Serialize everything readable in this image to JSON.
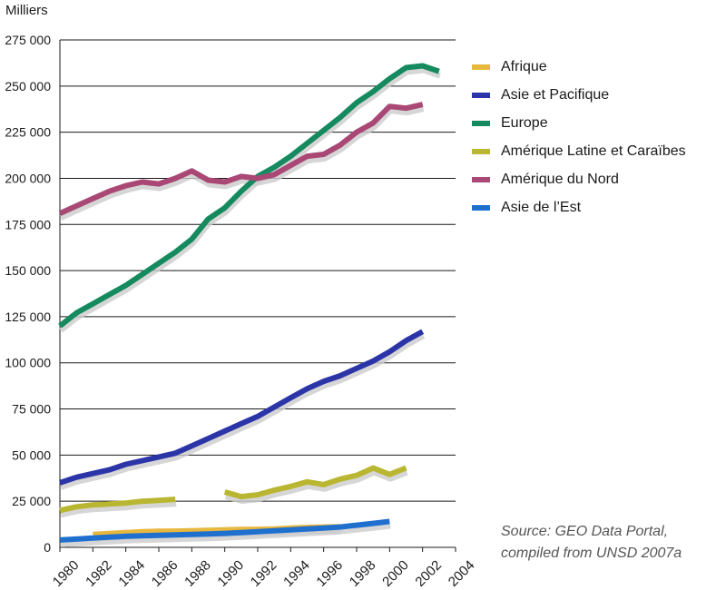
{
  "chart_data": {
    "type": "line",
    "ylabel": "Milliers",
    "xlabel": "",
    "xlim": [
      1980,
      2004
    ],
    "ylim": [
      0,
      275000
    ],
    "x_ticks": [
      "1980",
      "1982",
      "1984",
      "1986",
      "1988",
      "1990",
      "1992",
      "1994",
      "1996",
      "1998",
      "2000",
      "2002",
      "2004"
    ],
    "y_ticks": [
      "0",
      "25 000",
      "50 000",
      "75 000",
      "100 000",
      "125 000",
      "150 000",
      "175 000",
      "200 000",
      "225 000",
      "250 000",
      "275 000"
    ],
    "grid": "horizontal",
    "legend_position": "right",
    "series": [
      {
        "name": "Afrique",
        "color": "#E8B83E",
        "segments": [
          {
            "x": [
              1982,
              1983,
              1984,
              1985,
              1986,
              1987,
              1988,
              1989,
              1990,
              1991,
              1992,
              1993,
              1994,
              1995,
              1996,
              1997
            ],
            "y": [
              7000,
              7500,
              8000,
              8500,
              8700,
              8800,
              9000,
              9200,
              9500,
              9700,
              9800,
              10000,
              10500,
              10800,
              11000,
              11200
            ]
          }
        ]
      },
      {
        "name": "Asie et Pacifique",
        "color": "#2B35A8",
        "segments": [
          {
            "x": [
              1980,
              1981,
              1982,
              1983,
              1984,
              1985,
              1986,
              1987,
              1988,
              1989,
              1990,
              1991,
              1992,
              1993,
              1994,
              1995,
              1996,
              1997,
              1998,
              1999,
              2000,
              2001,
              2002
            ],
            "y": [
              35000,
              38000,
              40000,
              42000,
              45000,
              47000,
              49000,
              51000,
              55000,
              59000,
              63000,
              67000,
              71000,
              76000,
              81000,
              86000,
              90000,
              93000,
              97000,
              101000,
              106000,
              112000,
              117000
            ]
          }
        ]
      },
      {
        "name": "Europe",
        "color": "#158A5E",
        "segments": [
          {
            "x": [
              1980,
              1981,
              1982,
              1983,
              1984,
              1985,
              1986,
              1987,
              1988,
              1989,
              1990,
              1991,
              1992,
              1993,
              1994,
              1995,
              1996,
              1997,
              1998,
              1999,
              2000,
              2001,
              2002,
              2003
            ],
            "y": [
              120000,
              127000,
              132000,
              137000,
              142000,
              148000,
              154000,
              160000,
              167000,
              178000,
              184000,
              193000,
              201000,
              206000,
              212000,
              219000,
              226000,
              233000,
              241000,
              247000,
              254000,
              260000,
              261000,
              258000
            ]
          }
        ]
      },
      {
        "name": "Amérique Latine et Caraïbes",
        "color": "#B9B631",
        "segments": [
          {
            "x": [
              1980,
              1981,
              1982,
              1983,
              1984,
              1985,
              1986,
              1987
            ],
            "y": [
              20000,
              22000,
              23000,
              23500,
              24000,
              25000,
              25500,
              26000
            ]
          },
          {
            "x": [
              1990,
              1991,
              1992,
              1993,
              1994,
              1995,
              1996,
              1997,
              1998,
              1999,
              2000,
              2001
            ],
            "y": [
              30000,
              27500,
              28500,
              31000,
              33000,
              35500,
              34000,
              37000,
              39000,
              43000,
              39500,
              43000
            ]
          }
        ]
      },
      {
        "name": "Amérique du Nord",
        "color": "#A94775",
        "segments": [
          {
            "x": [
              1980,
              1981,
              1982,
              1983,
              1984,
              1985,
              1986,
              1987,
              1988,
              1989,
              1990,
              1991,
              1992,
              1993,
              1994,
              1995,
              1996,
              1997,
              1998,
              1999,
              2000,
              2001,
              2002
            ],
            "y": [
              181000,
              185000,
              189000,
              193000,
              196000,
              198000,
              197000,
              200000,
              204000,
              199000,
              198000,
              201000,
              200000,
              202000,
              207000,
              212000,
              213000,
              218000,
              225000,
              230000,
              239000,
              238000,
              240000
            ]
          }
        ]
      },
      {
        "name": "Asie de l’Est",
        "color": "#1F6FCF",
        "segments": [
          {
            "x": [
              1980,
              1981,
              1982,
              1983,
              1984,
              1985,
              1986,
              1987,
              1988,
              1989,
              1990,
              1991,
              1992,
              1993,
              1994,
              1995,
              1996,
              1997,
              1998,
              1999,
              2000
            ],
            "y": [
              4000,
              4500,
              5000,
              5500,
              6000,
              6300,
              6500,
              6800,
              7000,
              7300,
              7600,
              8000,
              8500,
              9000,
              9500,
              10000,
              10500,
              11000,
              12000,
              13000,
              14000
            ]
          }
        ]
      }
    ]
  },
  "legend": {
    "items": [
      {
        "label": "Afrique",
        "color": "#E8B83E"
      },
      {
        "label": "Asie et Pacifique",
        "color": "#2B35A8"
      },
      {
        "label": "Europe",
        "color": "#158A5E"
      },
      {
        "label": "Amérique Latine et Caraïbes",
        "color": "#B9B631"
      },
      {
        "label": "Amérique du Nord",
        "color": "#A94775"
      },
      {
        "label": "Asie de l’Est",
        "color": "#1F6FCF"
      }
    ]
  },
  "source": {
    "line1": "Source: GEO Data Portal,",
    "line2": "compiled from UNSD 2007a"
  }
}
